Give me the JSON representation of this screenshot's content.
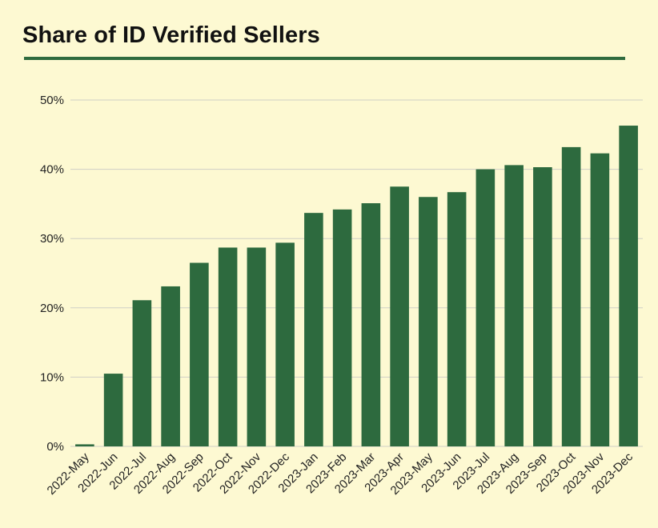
{
  "chart_data": {
    "type": "bar",
    "title": "Share of ID Verified Sellers",
    "xlabel": "",
    "ylabel": "",
    "ylim": [
      0,
      50
    ],
    "yticks": [
      "0%",
      "10%",
      "20%",
      "30%",
      "40%",
      "50%"
    ],
    "ytick_values": [
      0,
      10,
      20,
      30,
      40,
      50
    ],
    "grid": true,
    "legend": "none",
    "bar_color": "#2d6a3e",
    "categories": [
      "2022-May",
      "2022-Jun",
      "2022-Jul",
      "2022-Aug",
      "2022-Sep",
      "2022-Oct",
      "2022-Nov",
      "2022-Dec",
      "2023-Jan",
      "2023-Feb",
      "2023-Mar",
      "2023-Apr",
      "2023-May",
      "2023-Jun",
      "2023-Jul",
      "2023-Aug",
      "2023-Sep",
      "2023-Oct",
      "2023-Nov",
      "2023-Dec"
    ],
    "values": [
      0.3,
      10.5,
      21.1,
      23.1,
      26.5,
      28.7,
      28.7,
      29.4,
      33.7,
      34.2,
      35.1,
      37.5,
      36.0,
      36.7,
      40.0,
      40.6,
      40.3,
      43.2,
      42.3,
      46.3
    ]
  }
}
